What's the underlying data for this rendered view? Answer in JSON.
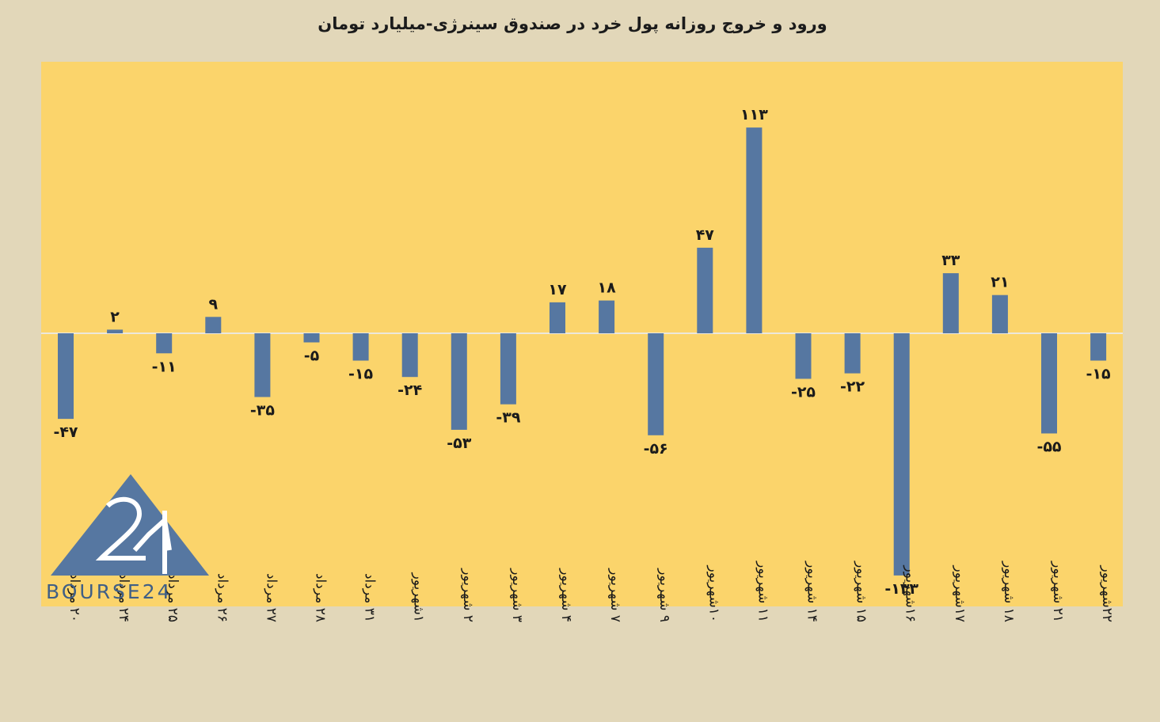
{
  "chart_data": {
    "type": "bar",
    "title": "ورود و خروج روزانه پول خرد در صندوق سینرژی-میلیارد تومان",
    "categories": [
      "۲۰ مرداد",
      "۲۴ مرداد",
      "۲۵ مرداد",
      "۲۶ مرداد",
      "۲۷ مرداد",
      "۲۸ مرداد",
      "۳۱ مرداد",
      "۱شهریور",
      "۲ شهریور",
      "۳ شهریور",
      "۴ شهریور",
      "۷ شهریور",
      "۹ شهریور",
      "۱۰شهریور",
      "۱۱ شهریور",
      "۱۴ شهریور",
      "۱۵ شهریور",
      "۱۶شهریور",
      "۱۷شهریور",
      "۱۸ شهریور",
      "۲۱ شهریور",
      "۲۲شهریور"
    ],
    "values": [
      -47,
      2,
      -11,
      9,
      -35,
      -5,
      -15,
      -24,
      -53,
      -39,
      17,
      18,
      -56,
      47,
      113,
      -25,
      -22,
      -133,
      33,
      21,
      -55,
      -15
    ],
    "data_labels": [
      "-۴۷",
      "۲",
      "-۱۱",
      "۹",
      "-۳۵",
      "-۵",
      "-۱۵",
      "-۲۴",
      "-۵۳",
      "-۳۹",
      "۱۷",
      "۱۸",
      "-۵۶",
      "۴۷",
      "۱۱۳",
      "-۲۵",
      "-۲۲",
      "-۱۳۳",
      "۳۳",
      "۲۱",
      "-۵۵",
      "-۱۵"
    ],
    "ylim": [
      -150,
      150
    ],
    "grid": false,
    "colors": {
      "bar": "#5677a1",
      "plot_bg": "#fbd46b",
      "page_bg": "#e2d7b9",
      "zero_line": "#ece8dc"
    }
  },
  "logo": {
    "text": "BOURSE24",
    "color": "#5677a1"
  }
}
